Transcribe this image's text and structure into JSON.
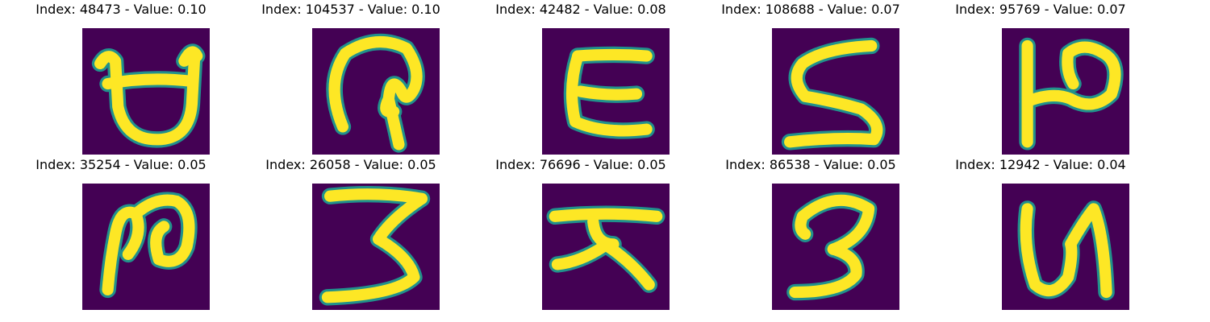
{
  "figure": {
    "background": "#ffffff",
    "image_background": "#440154",
    "stroke_color": "#fde725",
    "stroke_edge_color": "#21918c",
    "panels": [
      {
        "index": "48473",
        "value": "0.10",
        "title": "Index: 48473 - Value: 0.10",
        "glyph": "bowl-shape"
      },
      {
        "index": "104537",
        "value": "0.10",
        "title": "Index: 104537 - Value: 0.10",
        "glyph": "hook-shape"
      },
      {
        "index": "42482",
        "value": "0.08",
        "title": "Index: 42482 - Value: 0.08",
        "glyph": "open-c-shape"
      },
      {
        "index": "108688",
        "value": "0.07",
        "title": "Index: 108688 - Value: 0.07",
        "glyph": "s-shape"
      },
      {
        "index": "95769",
        "value": "0.07",
        "title": "Index: 95769 - Value: 0.07",
        "glyph": "pi-shape"
      },
      {
        "index": "35254",
        "value": "0.05",
        "title": "Index: 35254 - Value: 0.05",
        "glyph": "loop-n-shape"
      },
      {
        "index": "26058",
        "value": "0.05",
        "title": "Index: 26058 - Value: 0.05",
        "glyph": "three-shape"
      },
      {
        "index": "76696",
        "value": "0.05",
        "title": "Index: 76696 - Value: 0.05",
        "glyph": "tee-legs-shape"
      },
      {
        "index": "86538",
        "value": "0.05",
        "title": "Index: 86538 - Value: 0.05",
        "glyph": "three-tail-shape"
      },
      {
        "index": "12942",
        "value": "0.04",
        "title": "Index: 12942 - Value: 0.04",
        "glyph": "u-hook-shape"
      }
    ]
  }
}
